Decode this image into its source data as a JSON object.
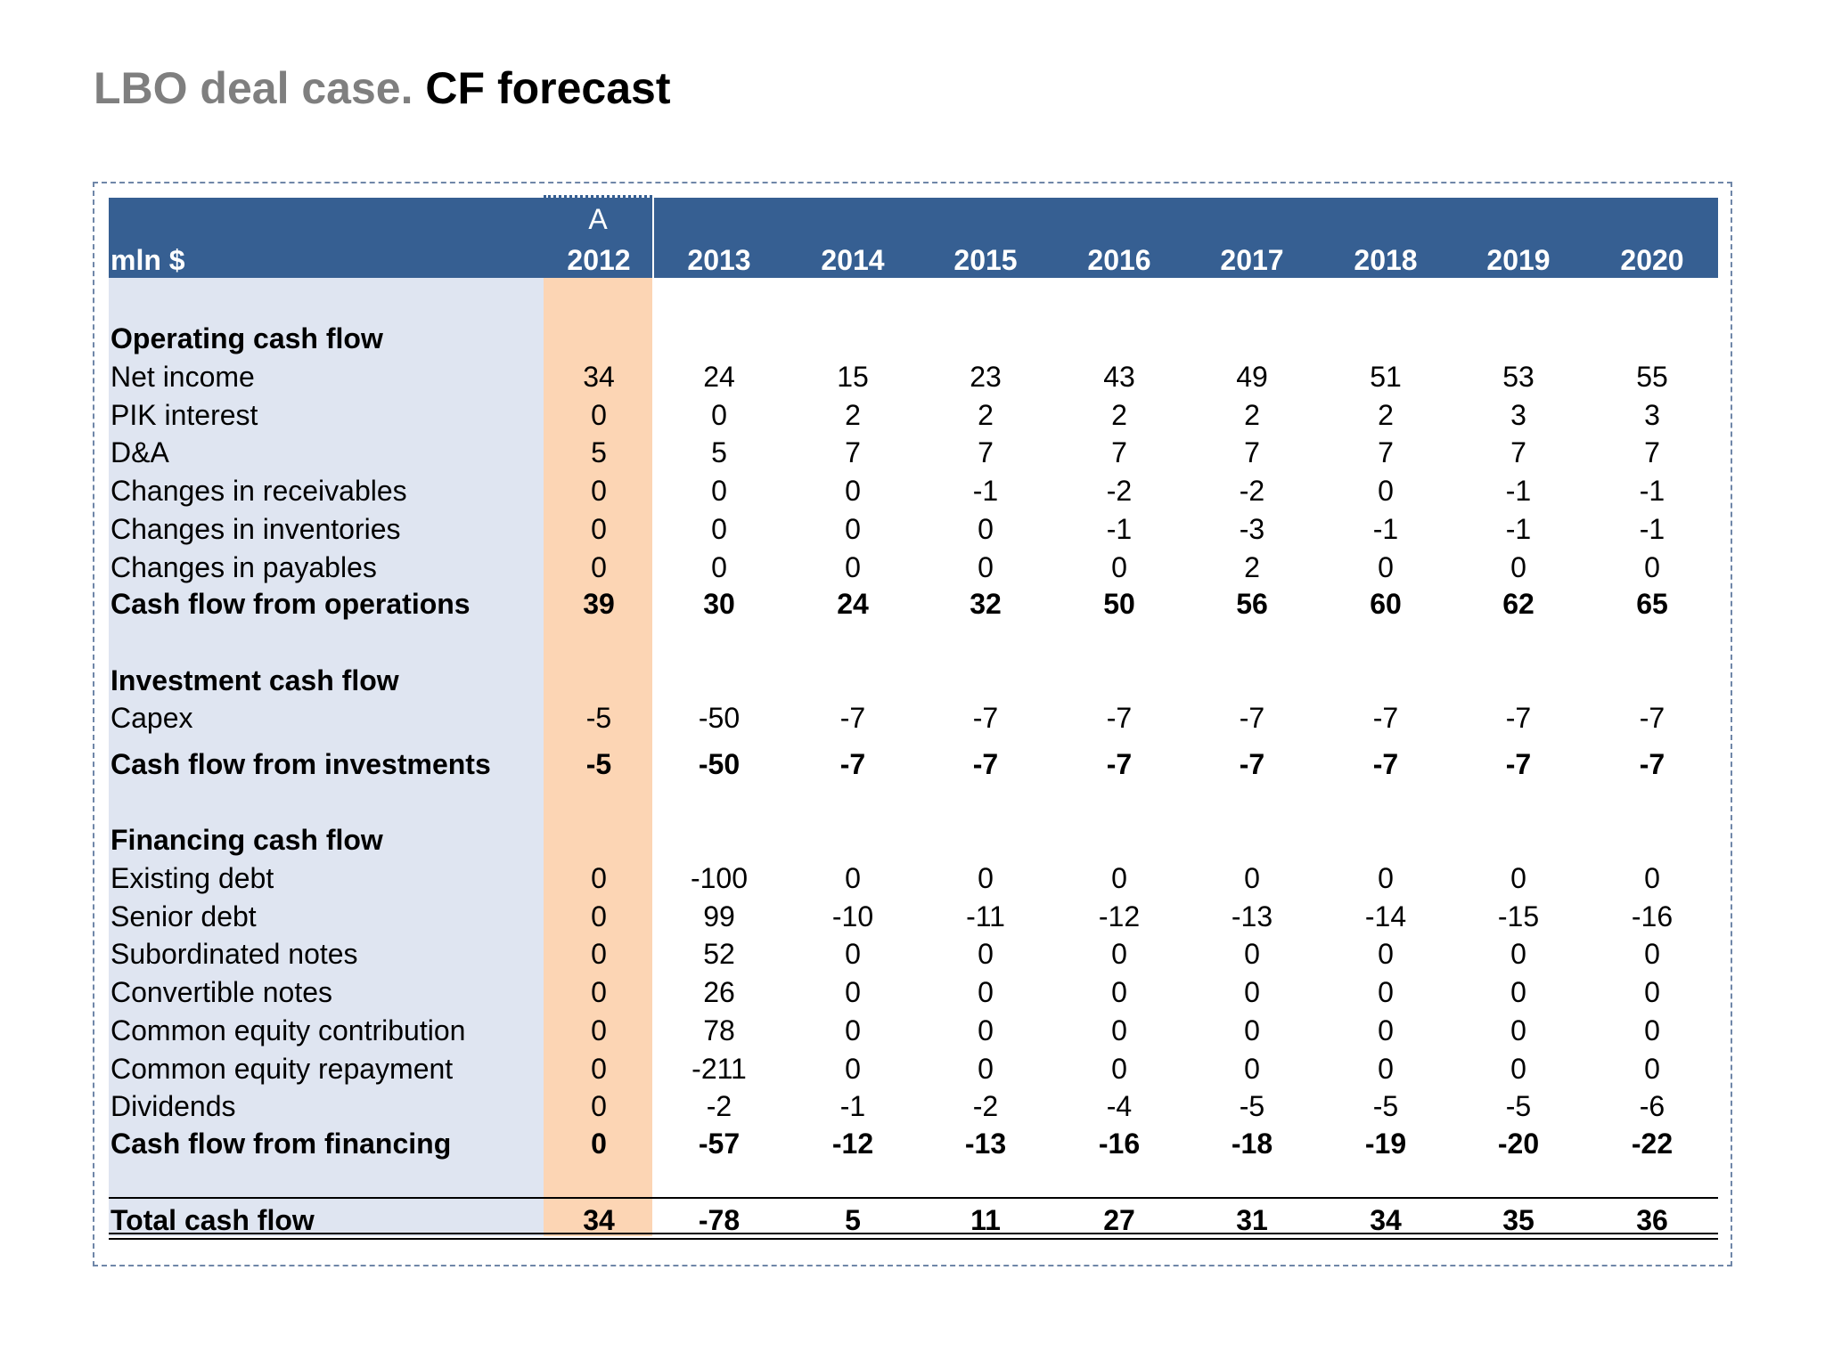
{
  "title": {
    "prefix": "LBO deal case.",
    "main": "CF forecast"
  },
  "table": {
    "unit_label": "mln $",
    "actual_marker": "A",
    "years": [
      "2012",
      "2013",
      "2014",
      "2015",
      "2016",
      "2017",
      "2018",
      "2019",
      "2020"
    ],
    "sections": [
      {
        "heading": "Operating cash flow",
        "rows": [
          {
            "label": "Net income",
            "values": [
              "34",
              "24",
              "15",
              "23",
              "43",
              "49",
              "51",
              "53",
              "55"
            ]
          },
          {
            "label": "PIK interest",
            "values": [
              "0",
              "0",
              "2",
              "2",
              "2",
              "2",
              "2",
              "3",
              "3"
            ]
          },
          {
            "label": "D&A",
            "values": [
              "5",
              "5",
              "7",
              "7",
              "7",
              "7",
              "7",
              "7",
              "7"
            ]
          },
          {
            "label": "Changes in receivables",
            "values": [
              "0",
              "0",
              "0",
              "-1",
              "-2",
              "-2",
              "0",
              "-1",
              "-1"
            ]
          },
          {
            "label": "Changes in inventories",
            "values": [
              "0",
              "0",
              "0",
              "0",
              "-1",
              "-3",
              "-1",
              "-1",
              "-1"
            ]
          },
          {
            "label": "Changes in payables",
            "values": [
              "0",
              "0",
              "0",
              "0",
              "0",
              "2",
              "0",
              "0",
              "0"
            ]
          }
        ],
        "subtotal": {
          "label": "Cash flow from operations",
          "values": [
            "39",
            "30",
            "24",
            "32",
            "50",
            "56",
            "60",
            "62",
            "65"
          ]
        }
      },
      {
        "heading": "Investment cash flow",
        "rows": [
          {
            "label": "Capex",
            "values": [
              "-5",
              "-50",
              "-7",
              "-7",
              "-7",
              "-7",
              "-7",
              "-7",
              "-7"
            ]
          }
        ],
        "subtotal": {
          "label": "Cash flow from investments",
          "values": [
            "-5",
            "-50",
            "-7",
            "-7",
            "-7",
            "-7",
            "-7",
            "-7",
            "-7"
          ]
        }
      },
      {
        "heading": "Financing cash flow",
        "rows": [
          {
            "label": "Existing debt",
            "values": [
              "0",
              "-100",
              "0",
              "0",
              "0",
              "0",
              "0",
              "0",
              "0"
            ]
          },
          {
            "label": "Senior debt",
            "values": [
              "0",
              "99",
              "-10",
              "-11",
              "-12",
              "-13",
              "-14",
              "-15",
              "-16"
            ]
          },
          {
            "label": "Subordinated notes",
            "values": [
              "0",
              "52",
              "0",
              "0",
              "0",
              "0",
              "0",
              "0",
              "0"
            ]
          },
          {
            "label": "Convertible notes",
            "values": [
              "0",
              "26",
              "0",
              "0",
              "0",
              "0",
              "0",
              "0",
              "0"
            ]
          },
          {
            "label": "Common equity contribution",
            "values": [
              "0",
              "78",
              "0",
              "0",
              "0",
              "0",
              "0",
              "0",
              "0"
            ]
          },
          {
            "label": "Common equity repayment",
            "values": [
              "0",
              "-211",
              "0",
              "0",
              "0",
              "0",
              "0",
              "0",
              "0"
            ]
          },
          {
            "label": "Dividends",
            "values": [
              "0",
              "-2",
              "-1",
              "-2",
              "-4",
              "-5",
              "-5",
              "-5",
              "-6"
            ]
          }
        ],
        "subtotal": {
          "label": "Cash flow from financing",
          "values": [
            "0",
            "-57",
            "-12",
            "-13",
            "-16",
            "-18",
            "-19",
            "-20",
            "-22"
          ]
        }
      }
    ],
    "total": {
      "label": "Total cash flow",
      "values": [
        "34",
        "-78",
        "5",
        "11",
        "27",
        "31",
        "34",
        "35",
        "36"
      ]
    }
  }
}
